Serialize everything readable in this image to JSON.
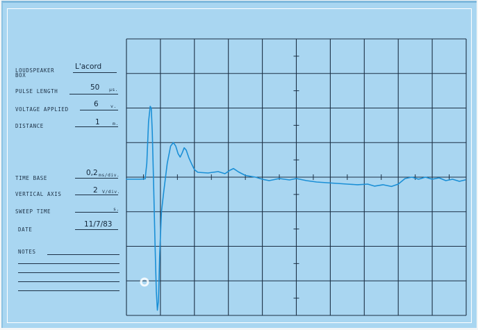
{
  "form": {
    "loudspeaker_label": "LOUDSPEAKER",
    "box_label": "BOX",
    "loudspeaker_value": "L'acord",
    "pulse_length_label": "PULSE LENGTH",
    "pulse_length_value": "50",
    "pulse_length_unit": "µs.",
    "voltage_label": "VOLTAGE APPLIED",
    "voltage_value": "6",
    "voltage_unit": "v.",
    "distance_label": "DISTANCE",
    "distance_value": "1",
    "distance_unit": "m.",
    "time_base_label": "TIME BASE",
    "time_base_value": "0,2",
    "time_base_unit": "ms/div.",
    "vertical_axis_label": "VERTICAL AXIS",
    "vertical_axis_value": "2",
    "vertical_axis_unit": "V/div.",
    "sweep_time_label": "SWEEP TIME",
    "sweep_time_value": "",
    "sweep_time_unit": "s.",
    "date_label": "DATE",
    "date_value": "11/7/83",
    "notes_label": "NOTES"
  },
  "colors": {
    "paper": "#a9d6f1",
    "ink": "#1b2f44",
    "trace": "#1a8fd6"
  },
  "chart_data": {
    "type": "line",
    "title": "",
    "xlabel": "",
    "ylabel": "",
    "grid": true,
    "xlim": [
      0,
      10
    ],
    "ylim": [
      -4,
      4
    ],
    "x_units": "divisions (0,2 ms/div)",
    "y_units": "divisions (2 V/div)",
    "series": [
      {
        "points": [
          [
            0.0,
            -0.06
          ],
          [
            0.2,
            -0.06
          ],
          [
            0.4,
            -0.06
          ],
          [
            0.55,
            -0.05
          ],
          [
            0.6,
            0.4
          ],
          [
            0.65,
            1.6
          ],
          [
            0.7,
            2.05
          ],
          [
            0.73,
            2.0
          ],
          [
            0.76,
            1.3
          ],
          [
            0.8,
            -0.2
          ],
          [
            0.84,
            -1.9
          ],
          [
            0.88,
            -3.3
          ],
          [
            0.91,
            -3.85
          ],
          [
            0.94,
            -3.6
          ],
          [
            0.98,
            -2.2
          ],
          [
            1.03,
            -1.0
          ],
          [
            1.1,
            -0.4
          ],
          [
            1.2,
            0.4
          ],
          [
            1.3,
            0.9
          ],
          [
            1.38,
            1.0
          ],
          [
            1.45,
            0.9
          ],
          [
            1.52,
            0.68
          ],
          [
            1.58,
            0.58
          ],
          [
            1.64,
            0.7
          ],
          [
            1.7,
            0.85
          ],
          [
            1.76,
            0.78
          ],
          [
            1.84,
            0.55
          ],
          [
            1.92,
            0.38
          ],
          [
            2.0,
            0.22
          ],
          [
            2.1,
            0.14
          ],
          [
            2.4,
            0.12
          ],
          [
            2.7,
            0.16
          ],
          [
            2.9,
            0.1
          ],
          [
            3.05,
            0.2
          ],
          [
            3.15,
            0.25
          ],
          [
            3.3,
            0.15
          ],
          [
            3.5,
            0.05
          ],
          [
            3.8,
            0.0
          ],
          [
            4.0,
            -0.06
          ],
          [
            4.2,
            -0.1
          ],
          [
            4.5,
            -0.04
          ],
          [
            4.8,
            -0.08
          ],
          [
            5.0,
            -0.04
          ],
          [
            5.3,
            -0.1
          ],
          [
            5.6,
            -0.14
          ],
          [
            5.9,
            -0.16
          ],
          [
            6.2,
            -0.18
          ],
          [
            6.5,
            -0.2
          ],
          [
            6.8,
            -0.22
          ],
          [
            7.1,
            -0.2
          ],
          [
            7.3,
            -0.26
          ],
          [
            7.55,
            -0.22
          ],
          [
            7.8,
            -0.27
          ],
          [
            8.0,
            -0.2
          ],
          [
            8.2,
            -0.04
          ],
          [
            8.4,
            0.0
          ],
          [
            8.6,
            -0.06
          ],
          [
            8.8,
            0.0
          ],
          [
            9.0,
            -0.06
          ],
          [
            9.2,
            -0.02
          ],
          [
            9.4,
            -0.1
          ],
          [
            9.6,
            -0.06
          ],
          [
            9.8,
            -0.12
          ],
          [
            9.97,
            -0.08
          ]
        ]
      }
    ]
  }
}
